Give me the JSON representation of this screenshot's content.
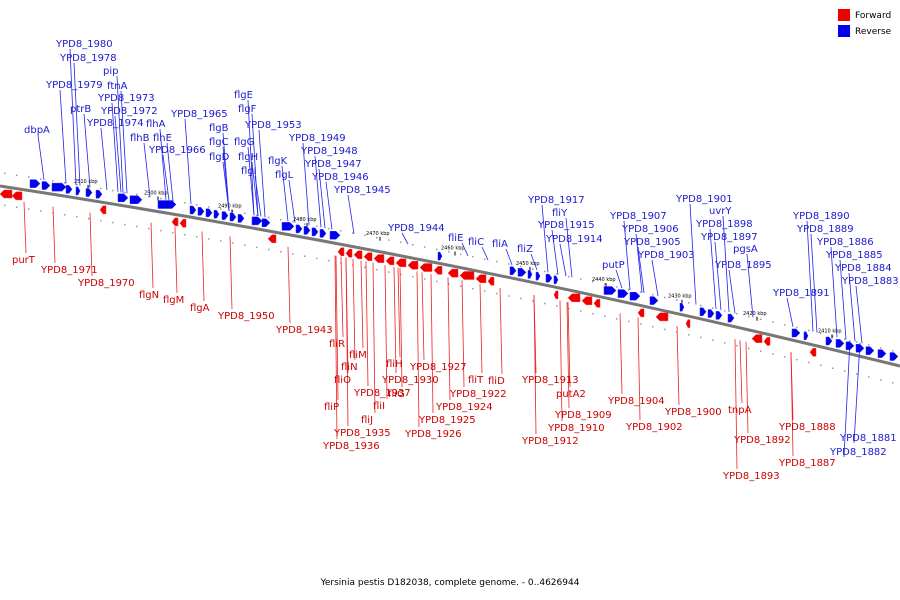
{
  "caption": "Yersinia pestis D182038, complete genome. - 0..4626944",
  "legend": [
    {
      "label": "Forward",
      "color": "#ee0000"
    },
    {
      "label": "Reverse",
      "color": "#0000ee"
    }
  ],
  "ticks": [
    "2510 kbp",
    "2500 kbp",
    "2490 kbp",
    "2480 kbp",
    "2470 kbp",
    "2460 kbp",
    "2450 kbp",
    "2440 kbp",
    "2430 kbp",
    "2420 kbp",
    "2410 kbp"
  ],
  "forward_labels": [
    "purT",
    "YPD8_1971",
    "YPD8_1970",
    "flgN",
    "flgM",
    "flgA",
    "YPD8_1950",
    "YPD8_1943",
    "fliR",
    "fliM",
    "fliN",
    "fliO",
    "fliP",
    "YPD8_1937",
    "fliI",
    "fliJ",
    "YPD8_1935",
    "YPD8_1936",
    "fliH",
    "fliG",
    "YPD8_1930",
    "YPD8_1927",
    "YPD8_1925",
    "YPD8_1926",
    "YPD8_1924",
    "YPD8_1922",
    "fliT",
    "fliD",
    "YPD8_1913",
    "putA2",
    "YPD8_1909",
    "YPD8_1910",
    "YPD8_1912",
    "YPD8_1904",
    "YPD8_1902",
    "YPD8_1900",
    "tnpA",
    "YPD8_1892",
    "YPD8_1893",
    "YPD8_1888",
    "YPD8_1887"
  ],
  "reverse_labels": [
    "YPD8_1980",
    "YPD8_1978",
    "pip",
    "YPD8_1979",
    "ftnA",
    "ptrB",
    "YPD8_1973",
    "YPD8_1972",
    "YPD8_1974",
    "dbpA",
    "flhA",
    "flhB",
    "flhE",
    "YPD8_1966",
    "YPD8_1965",
    "flgE",
    "flgF",
    "flgB",
    "flgC",
    "flgD",
    "flgG",
    "flgH",
    "flgI",
    "flgK",
    "flgL",
    "YPD8_1953",
    "YPD8_1949",
    "YPD8_1948",
    "YPD8_1947",
    "YPD8_1946",
    "YPD8_1945",
    "YPD8_1944",
    "fliE",
    "fliC",
    "fliA",
    "fliZ",
    "YPD8_1917",
    "fliY",
    "YPD8_1915",
    "YPD8_1914",
    "YPD8_1907",
    "YPD8_1906",
    "YPD8_1905",
    "YPD8_1903",
    "putP",
    "YPD8_1901",
    "uvrY",
    "YPD8_1898",
    "YPD8_1897",
    "pgsA",
    "YPD8_1895",
    "YPD8_1891",
    "YPD8_1890",
    "YPD8_1889",
    "YPD8_1886",
    "YPD8_1885",
    "YPD8_1884",
    "YPD8_1883",
    "YPD8_1881",
    "YPD8_1882"
  ]
}
